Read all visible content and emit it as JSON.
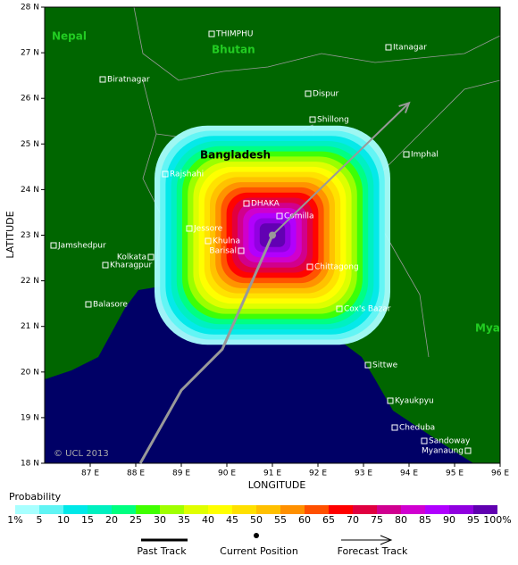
{
  "map": {
    "xticks": [
      {
        "value": 87,
        "label": "87 E"
      },
      {
        "value": 88,
        "label": "88 E"
      },
      {
        "value": 89,
        "label": "89 E"
      },
      {
        "value": 90,
        "label": "90 E"
      },
      {
        "value": 91,
        "label": "91 E"
      },
      {
        "value": 92,
        "label": "92 E"
      },
      {
        "value": 93,
        "label": "93 E"
      },
      {
        "value": 94,
        "label": "94 E"
      },
      {
        "value": 95,
        "label": "95 E"
      },
      {
        "value": 96,
        "label": "96 E"
      }
    ],
    "yticks": [
      {
        "value": 28,
        "label": "28 N"
      },
      {
        "value": 27,
        "label": "27 N"
      },
      {
        "value": 26,
        "label": "26 N"
      },
      {
        "value": 25,
        "label": "25 N"
      },
      {
        "value": 24,
        "label": "24 N"
      },
      {
        "value": 23,
        "label": "23 N"
      },
      {
        "value": 22,
        "label": "22 N"
      },
      {
        "value": 21,
        "label": "21 N"
      },
      {
        "value": 20,
        "label": "20 N"
      },
      {
        "value": 19,
        "label": "19 N"
      },
      {
        "value": 18,
        "label": "18 N"
      }
    ],
    "xlim": [
      86,
      96
    ],
    "ylim": [
      18,
      28
    ],
    "xlabel": "LONGITUDE",
    "ylabel": "LATITUDE",
    "countries": [
      "Nepal",
      "Bhutan",
      "Bangladesh",
      "Mya"
    ],
    "places": [
      "THIMPHU",
      "Itanagar",
      "Biratnagar",
      "Dispur",
      "Shillong",
      "Imphal",
      "Rajshahi",
      "DHAKA",
      "Comilla",
      "Jessore",
      "Khulna",
      "Barisal",
      "Kolkata",
      "Jamshedpur",
      "Kharagpur",
      "Chittagong",
      "Balasore",
      "Cox's Bazar",
      "Sittwe",
      "Kyaukpyu",
      "Cheduba",
      "Sandoway",
      "Myanaung"
    ],
    "copyright": "© UCL 2013",
    "past_track": {
      "lon": [
        88.1,
        89.0,
        89.9,
        91.0
      ],
      "lat": [
        18.0,
        19.6,
        20.5,
        23.0
      ]
    },
    "forecast_track": {
      "lon": [
        91.0,
        94.0
      ],
      "lat": [
        23.0,
        25.9
      ]
    },
    "current_position": {
      "lon": 91.0,
      "lat": 23.0
    }
  },
  "legend": {
    "title": "Probability",
    "labels": [
      "1%",
      "5",
      "10",
      "15",
      "20",
      "25",
      "30",
      "35",
      "40",
      "45",
      "50",
      "55",
      "60",
      "65",
      "70",
      "75",
      "80",
      "85",
      "90",
      "95",
      "100%"
    ],
    "colors": [
      "#a8ffff",
      "#60f4f4",
      "#00e8e8",
      "#00f0c0",
      "#00ff80",
      "#40ff00",
      "#a0ff00",
      "#e0ff00",
      "#ffff00",
      "#ffe000",
      "#ffc000",
      "#ff9000",
      "#ff5000",
      "#ff0000",
      "#e00040",
      "#d00090",
      "#d000d0",
      "#b000ff",
      "#9000e0",
      "#6000b0"
    ],
    "past_track": "Past Track",
    "current_position": "Current Position",
    "forecast_track": "Forecast Track"
  }
}
